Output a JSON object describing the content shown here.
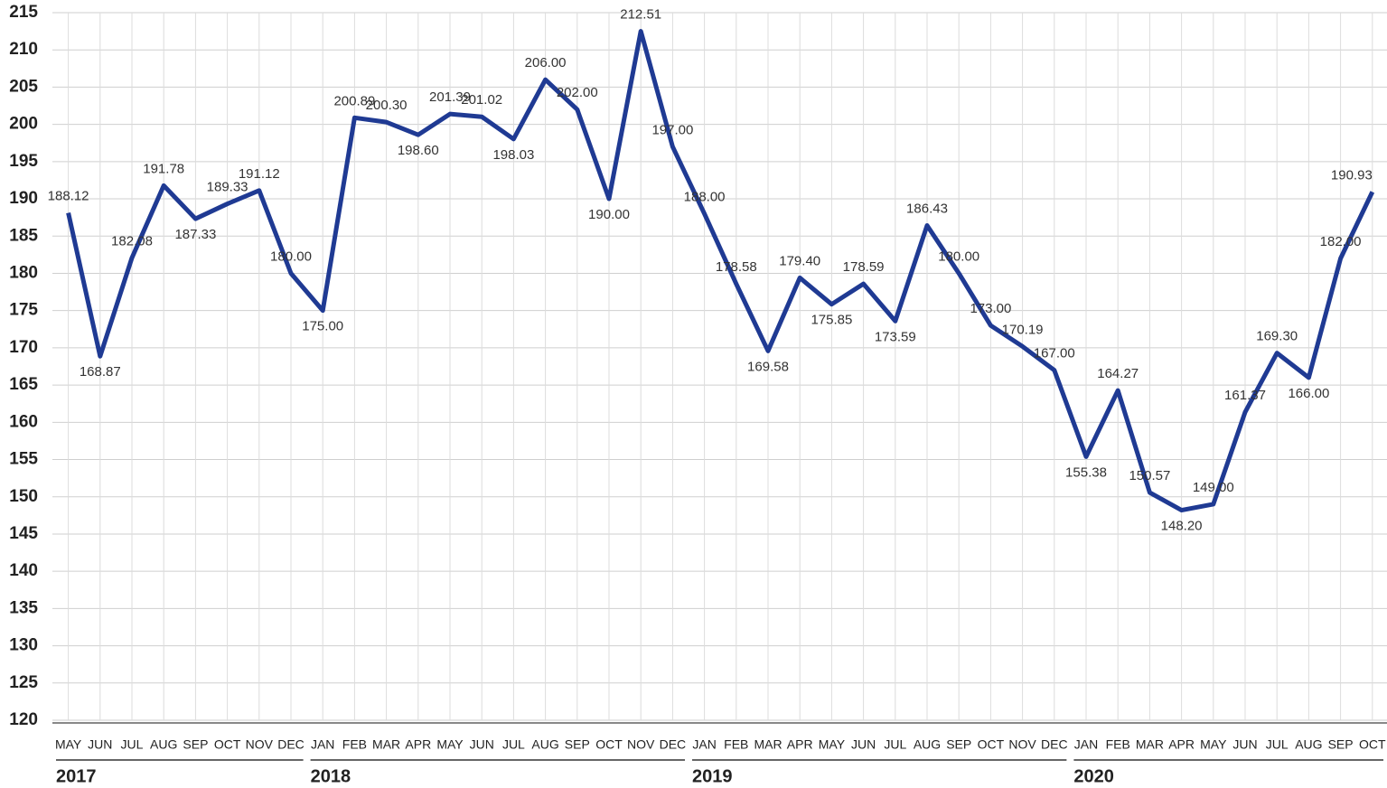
{
  "chart_data": {
    "type": "line",
    "categories": [
      "MAY",
      "JUN",
      "JUL",
      "AUG",
      "SEP",
      "OCT",
      "NOV",
      "DEC",
      "JAN",
      "FEB",
      "MAR",
      "APR",
      "MAY",
      "JUN",
      "JUL",
      "AUG",
      "SEP",
      "OCT",
      "NOV",
      "DEC",
      "JAN",
      "FEB",
      "MAR",
      "APR",
      "MAY",
      "JUN",
      "JUL",
      "AUG",
      "SEP",
      "OCT",
      "NOV",
      "DEC",
      "JAN",
      "FEB",
      "MAR",
      "APR",
      "MAY",
      "JUN",
      "JUL",
      "AUG",
      "SEP",
      "OCT"
    ],
    "year_groups": [
      {
        "label": "2017",
        "months": 8
      },
      {
        "label": "2018",
        "months": 12
      },
      {
        "label": "2019",
        "months": 12
      },
      {
        "label": "2020",
        "months": 10
      }
    ],
    "series": [
      {
        "color": "#1f3a93",
        "values": [
          188.12,
          168.87,
          182.08,
          191.78,
          187.33,
          189.33,
          191.12,
          180.0,
          175.0,
          200.89,
          200.3,
          198.6,
          201.39,
          201.02,
          198.03,
          206.0,
          202.0,
          190.0,
          212.51,
          197.0,
          188.0,
          178.58,
          169.58,
          179.4,
          175.85,
          178.59,
          173.59,
          186.43,
          180.0,
          173.0,
          170.19,
          167.0,
          155.38,
          164.27,
          150.57,
          148.2,
          149.0,
          161.37,
          169.3,
          166.0,
          182.0,
          190.93
        ],
        "value_labels": [
          "188.12",
          "168.87",
          "182.08",
          "191.78",
          "187.33",
          "189.33",
          "191.12",
          "180.00",
          "175.00",
          "200.89",
          "200.30",
          "198.60",
          "201.39",
          "201.02",
          "198.03",
          "206.00",
          "202.00",
          "190.00",
          "212.51",
          "197.00",
          "188.00",
          "178.58",
          "169.58",
          "179.40",
          "175.85",
          "178.59",
          "173.59",
          "186.43",
          "180.00",
          "173.00",
          "170.19",
          "167.00",
          "155.38",
          "164.27",
          "150.57",
          "148.20",
          "149.00",
          "161.37",
          "169.30",
          "166.00",
          "182.00",
          "190.93"
        ]
      }
    ],
    "ylim": [
      120,
      215
    ],
    "yticks": [
      120,
      125,
      130,
      135,
      140,
      145,
      150,
      155,
      160,
      165,
      170,
      175,
      180,
      185,
      190,
      195,
      200,
      205,
      210,
      215
    ],
    "grid": true
  }
}
